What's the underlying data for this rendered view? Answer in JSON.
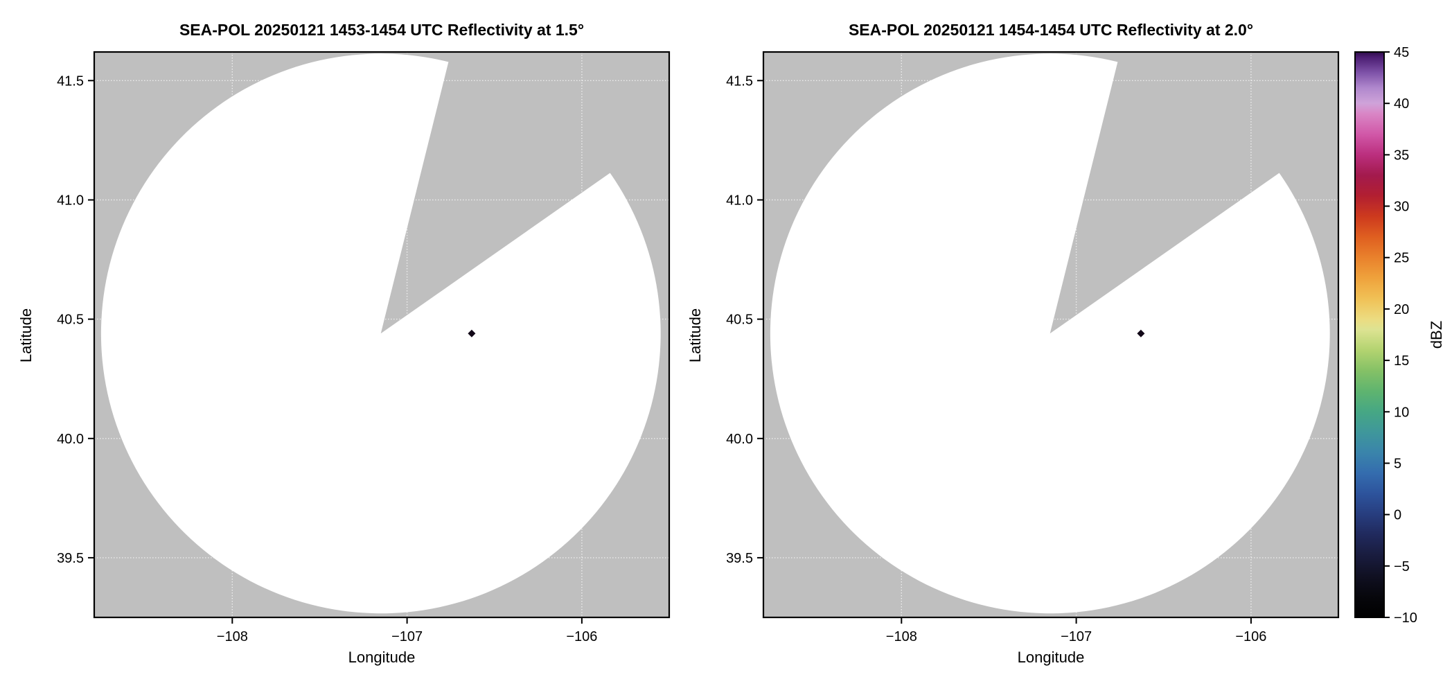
{
  "figure": {
    "background": "#ffffff",
    "panel_bg": "#bfbfbf",
    "coverage_color": "#ffffff",
    "grid_color": "#ffffff",
    "spine_color": "#000000"
  },
  "chart_data": [
    {
      "type": "radar_ppi",
      "title": "SEA-POL 20250121 1453-1454 UTC Reflectivity at 1.5°",
      "xlabel": "Longitude",
      "ylabel": "Latitude",
      "xlim": [
        -108.79,
        -105.5
      ],
      "ylim": [
        39.25,
        41.62
      ],
      "xticks": [
        -108,
        -107,
        -106
      ],
      "xtick_labels": [
        "−108",
        "−107",
        "−106"
      ],
      "yticks": [
        39.5,
        40.0,
        40.5,
        41.0,
        41.5
      ],
      "ytick_labels": [
        "39.5",
        "40.0",
        "40.5",
        "41.0",
        "41.5"
      ],
      "grid": true,
      "radar": {
        "lon": -107.15,
        "lat": 40.44,
        "radius_deg_lat": 1.173
      },
      "missing_sector_azimuth_deg": [
        14,
        55
      ],
      "echoes": [
        {
          "lon": -106.63,
          "lat": 40.44,
          "dbz": 45,
          "color": "#120818"
        }
      ]
    },
    {
      "type": "radar_ppi",
      "title": "SEA-POL 20250121 1454-1454 UTC Reflectivity at 2.0°",
      "xlabel": "Longitude",
      "ylabel": "Latitude",
      "xlim": [
        -108.79,
        -105.5
      ],
      "ylim": [
        39.25,
        41.62
      ],
      "xticks": [
        -108,
        -107,
        -106
      ],
      "xtick_labels": [
        "−108",
        "−107",
        "−106"
      ],
      "yticks": [
        39.5,
        40.0,
        40.5,
        41.0,
        41.5
      ],
      "ytick_labels": [
        "39.5",
        "40.0",
        "40.5",
        "41.0",
        "41.5"
      ],
      "grid": true,
      "radar": {
        "lon": -107.15,
        "lat": 40.44,
        "radius_deg_lat": 1.173
      },
      "missing_sector_azimuth_deg": [
        14,
        55
      ],
      "echoes": [
        {
          "lon": -106.63,
          "lat": 40.44,
          "dbz": 45,
          "color": "#120818"
        }
      ]
    }
  ],
  "colorbar": {
    "label": "dBZ",
    "min": -10,
    "max": 45,
    "ticks": [
      45,
      40,
      35,
      30,
      25,
      20,
      15,
      10,
      5,
      0,
      -5,
      -10
    ],
    "tick_labels": [
      "45",
      "40",
      "35",
      "30",
      "25",
      "20",
      "15",
      "10",
      "5",
      "0",
      "−5",
      "−10"
    ],
    "gradient_stops": [
      {
        "value": -10,
        "color": "#000000"
      },
      {
        "value": -8,
        "color": "#07070c"
      },
      {
        "value": -6,
        "color": "#101022"
      },
      {
        "value": -4,
        "color": "#191c3e"
      },
      {
        "value": -2,
        "color": "#20295c"
      },
      {
        "value": 0,
        "color": "#273d7e"
      },
      {
        "value": 2,
        "color": "#2d539c"
      },
      {
        "value": 4,
        "color": "#346cae"
      },
      {
        "value": 6,
        "color": "#3a84ab"
      },
      {
        "value": 8,
        "color": "#3f979b"
      },
      {
        "value": 10,
        "color": "#46a784"
      },
      {
        "value": 12,
        "color": "#5fb46f"
      },
      {
        "value": 14,
        "color": "#85c166"
      },
      {
        "value": 16,
        "color": "#b3d370"
      },
      {
        "value": 18,
        "color": "#dde392"
      },
      {
        "value": 19,
        "color": "#ecdc81"
      },
      {
        "value": 21,
        "color": "#f0c156"
      },
      {
        "value": 23,
        "color": "#efa23c"
      },
      {
        "value": 25,
        "color": "#e9812c"
      },
      {
        "value": 27,
        "color": "#df5f20"
      },
      {
        "value": 29,
        "color": "#cd3a1e"
      },
      {
        "value": 31,
        "color": "#b21f31"
      },
      {
        "value": 33,
        "color": "#a31a4d"
      },
      {
        "value": 35,
        "color": "#bb2f7e"
      },
      {
        "value": 37,
        "color": "#d158a8"
      },
      {
        "value": 39,
        "color": "#d986c6"
      },
      {
        "value": 40,
        "color": "#cfa3d9"
      },
      {
        "value": 41.5,
        "color": "#b088cd"
      },
      {
        "value": 43,
        "color": "#7e52a8"
      },
      {
        "value": 44.5,
        "color": "#4b1d72"
      },
      {
        "value": 45,
        "color": "#2f0d49"
      }
    ]
  }
}
